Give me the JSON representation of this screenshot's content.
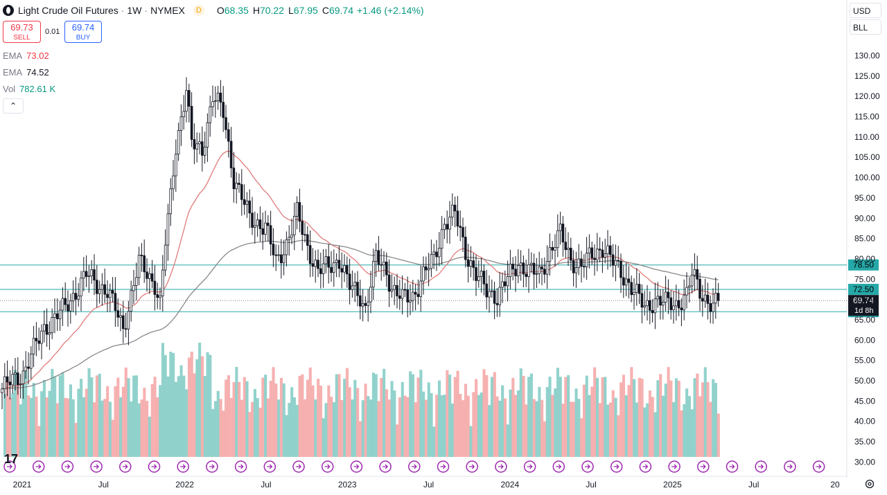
{
  "header": {
    "title": "Light Crude Oil Futures",
    "interval": "1W",
    "exchange": "NYMEX",
    "delay_tag": "D",
    "open_label": "O",
    "open": "68.35",
    "high_label": "H",
    "high": "70.22",
    "low_label": "L",
    "low": "67.95",
    "close_label": "C",
    "close": "69.74",
    "change": "+1.46 (+2.14%)"
  },
  "trade": {
    "sell_price": "69.73",
    "sell_label": "SELL",
    "spread": "0.01",
    "buy_price": "69.74",
    "buy_label": "BUY"
  },
  "indicators": [
    {
      "name": "EMA",
      "value": "73.02"
    },
    {
      "name": "EMA",
      "value": "74.52"
    },
    {
      "name": "Vol",
      "value": "782.61 K"
    }
  ],
  "controls": {
    "currency": "USD",
    "scale_mode": "BLL",
    "collapse_glyph": "⌃"
  },
  "colors": {
    "up": "#089981",
    "down": "#f23645",
    "candle": "#131722",
    "ema_fast": "#e07a7a",
    "ema_slow": "#888888",
    "level_line": "#26a8a8",
    "volume_up": "#7fcac3",
    "volume_down": "#f5a3a3",
    "events": "#9c27b0"
  },
  "chart_data": {
    "type": "candlestick",
    "x_axis_labels": [
      "2021",
      "Jul",
      "2022",
      "Jul",
      "2023",
      "Jul",
      "2024",
      "Jul",
      "2025",
      "Jul",
      "20"
    ],
    "y_axis_labels": [
      "130.00",
      "125.00",
      "120.00",
      "115.00",
      "110.00",
      "105.00",
      "100.00",
      "95.00",
      "90.00",
      "85.00",
      "80.00",
      "75.00",
      "70.00",
      "65.00",
      "60.00",
      "55.00",
      "50.00",
      "45.00",
      "40.00",
      "35.00",
      "30.00"
    ],
    "ylim": [
      29.2,
      131.8
    ],
    "horizontal_levels": [
      {
        "value": 78.5,
        "label": "78.50"
      },
      {
        "value": 72.5,
        "label": "72.50"
      },
      {
        "value": 67.0,
        "label": "67.00"
      }
    ],
    "current_price": {
      "value": 69.74,
      "label": "69.74",
      "countdown": "1d 8h"
    },
    "anchors": [
      [
        0,
        48
      ],
      [
        8,
        52
      ],
      [
        16,
        63
      ],
      [
        24,
        68
      ],
      [
        32,
        76
      ],
      [
        40,
        72
      ],
      [
        46,
        63
      ],
      [
        52,
        79
      ],
      [
        58,
        74
      ],
      [
        60,
        69
      ],
      [
        62,
        84
      ],
      [
        64,
        95
      ],
      [
        66,
        108
      ],
      [
        70,
        122
      ],
      [
        72,
        108
      ],
      [
        76,
        107
      ],
      [
        80,
        120
      ],
      [
        84,
        116
      ],
      [
        88,
        100
      ],
      [
        94,
        90
      ],
      [
        100,
        88
      ],
      [
        104,
        79
      ],
      [
        108,
        84
      ],
      [
        112,
        91
      ],
      [
        116,
        83
      ],
      [
        120,
        77
      ],
      [
        124,
        78
      ],
      [
        128,
        80
      ],
      [
        132,
        73
      ],
      [
        136,
        71
      ],
      [
        138,
        68
      ],
      [
        142,
        80
      ],
      [
        146,
        77
      ],
      [
        148,
        73
      ],
      [
        152,
        70
      ],
      [
        156,
        71
      ],
      [
        160,
        76
      ],
      [
        164,
        80
      ],
      [
        168,
        89
      ],
      [
        172,
        91
      ],
      [
        176,
        82
      ],
      [
        180,
        76
      ],
      [
        184,
        72
      ],
      [
        188,
        71
      ],
      [
        192,
        75
      ],
      [
        196,
        79
      ],
      [
        200,
        77
      ],
      [
        204,
        76
      ],
      [
        208,
        82
      ],
      [
        212,
        86
      ],
      [
        216,
        80
      ],
      [
        220,
        78
      ],
      [
        224,
        81
      ],
      [
        228,
        83
      ],
      [
        232,
        79
      ],
      [
        236,
        76
      ],
      [
        240,
        72
      ],
      [
        244,
        68
      ],
      [
        248,
        70
      ],
      [
        252,
        69
      ],
      [
        256,
        69
      ],
      [
        260,
        71
      ],
      [
        262,
        76
      ],
      [
        264,
        74
      ],
      [
        266,
        71
      ],
      [
        268,
        70
      ],
      [
        270,
        68
      ],
      [
        272,
        69.74
      ]
    ]
  }
}
